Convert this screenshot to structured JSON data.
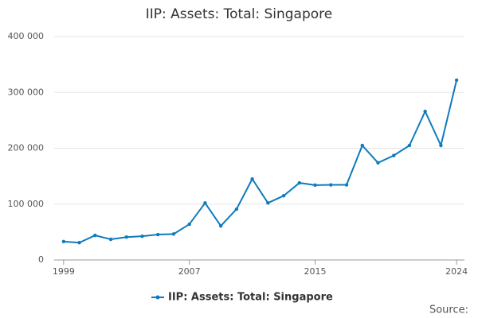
{
  "chart_data": {
    "type": "line",
    "title": "IIP: Assets: Total: Singapore",
    "x": [
      1999,
      2000,
      2001,
      2002,
      2003,
      2004,
      2005,
      2006,
      2007,
      2008,
      2009,
      2010,
      2011,
      2012,
      2013,
      2014,
      2015,
      2016,
      2017,
      2018,
      2019,
      2020,
      2021,
      2022,
      2023,
      2024
    ],
    "series": [
      {
        "name": "IIP: Assets: Total: Singapore",
        "color": "#0e7bbd",
        "values": [
          33000,
          31000,
          44000,
          37000,
          41000,
          42500,
          45500,
          46500,
          64000,
          102000,
          61000,
          91000,
          145000,
          102000,
          115000,
          138000,
          134000,
          134500,
          134500,
          205000,
          174000,
          187000,
          205000,
          266000,
          205000,
          322000
        ]
      }
    ],
    "xlim": [
      1998.4,
      2024.5
    ],
    "xticks": [
      1999,
      2007,
      2015,
      2024
    ],
    "ylim": [
      0,
      400000
    ],
    "yticks": [
      0,
      {
        "value": 100000,
        "label": "100 000"
      },
      {
        "value": 200000,
        "label": "200 000"
      },
      {
        "value": 300000,
        "label": "300 000"
      },
      {
        "value": 400000,
        "label": "400 000"
      }
    ],
    "grid": true,
    "source": "Source:"
  }
}
